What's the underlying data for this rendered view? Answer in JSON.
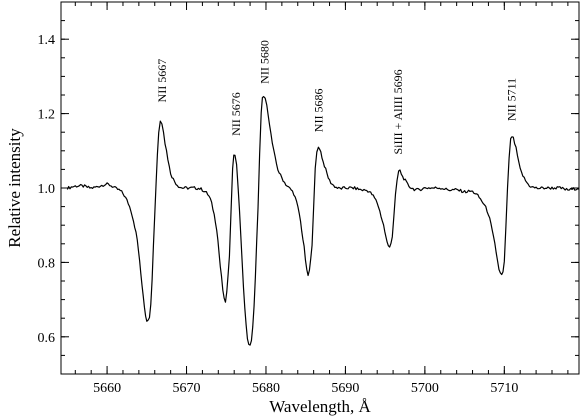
{
  "chart_data": {
    "type": "line",
    "xlabel": "Wavelength, Å",
    "ylabel": "Relative intensity",
    "xlim": [
      5654.2,
      5719.4
    ],
    "ylim": [
      0.5,
      1.5
    ],
    "x_major_ticks": [
      5660,
      5670,
      5680,
      5690,
      5700,
      5710
    ],
    "x_minor_step": 2,
    "y_major_ticks": [
      0.6,
      0.8,
      1.0,
      1.2,
      1.4
    ],
    "y_minor_step": 0.05,
    "x_tick_labels": [
      "5660",
      "5670",
      "5680",
      "5690",
      "5700",
      "5710"
    ],
    "y_tick_labels": [
      "0.6",
      "0.8",
      "1.0",
      "1.2",
      "1.4"
    ],
    "grid": false,
    "series": [
      {
        "color": "#000000",
        "points": [
          [
            5655.0,
            1.0
          ],
          [
            5656.0,
            1.005
          ],
          [
            5657.0,
            1.005
          ],
          [
            5658.0,
            1.0
          ],
          [
            5659.0,
            1.005
          ],
          [
            5660.0,
            1.01
          ],
          [
            5661.0,
            1.0
          ],
          [
            5662.0,
            0.985
          ],
          [
            5663.0,
            0.94
          ],
          [
            5663.8,
            0.86
          ],
          [
            5664.4,
            0.74
          ],
          [
            5665.0,
            0.645
          ],
          [
            5665.5,
            0.69
          ],
          [
            5666.0,
            0.93
          ],
          [
            5666.5,
            1.15
          ],
          [
            5666.9,
            1.175
          ],
          [
            5667.3,
            1.12
          ],
          [
            5668.0,
            1.04
          ],
          [
            5669.0,
            1.005
          ],
          [
            5670.0,
            1.0
          ],
          [
            5671.0,
            1.0
          ],
          [
            5672.0,
            0.995
          ],
          [
            5673.0,
            0.97
          ],
          [
            5673.8,
            0.89
          ],
          [
            5674.4,
            0.76
          ],
          [
            5674.9,
            0.695
          ],
          [
            5675.4,
            0.82
          ],
          [
            5675.8,
            1.05
          ],
          [
            5676.1,
            1.09
          ],
          [
            5676.5,
            1.0
          ],
          [
            5677.0,
            0.8
          ],
          [
            5677.5,
            0.63
          ],
          [
            5678.0,
            0.575
          ],
          [
            5678.5,
            0.68
          ],
          [
            5679.0,
            0.95
          ],
          [
            5679.4,
            1.2
          ],
          [
            5679.7,
            1.245
          ],
          [
            5680.1,
            1.22
          ],
          [
            5680.8,
            1.12
          ],
          [
            5681.5,
            1.05
          ],
          [
            5682.5,
            1.01
          ],
          [
            5683.5,
            0.985
          ],
          [
            5684.2,
            0.93
          ],
          [
            5684.8,
            0.84
          ],
          [
            5685.3,
            0.765
          ],
          [
            5685.8,
            0.85
          ],
          [
            5686.2,
            1.05
          ],
          [
            5686.6,
            1.11
          ],
          [
            5687.2,
            1.07
          ],
          [
            5688.0,
            1.02
          ],
          [
            5689.0,
            1.0
          ],
          [
            5690.0,
            1.0
          ],
          [
            5691.0,
            1.0
          ],
          [
            5692.0,
            0.995
          ],
          [
            5693.0,
            0.99
          ],
          [
            5694.0,
            0.96
          ],
          [
            5694.8,
            0.9
          ],
          [
            5695.4,
            0.845
          ],
          [
            5695.9,
            0.87
          ],
          [
            5696.3,
            0.98
          ],
          [
            5696.7,
            1.045
          ],
          [
            5697.2,
            1.03
          ],
          [
            5698.0,
            1.005
          ],
          [
            5699.0,
            0.995
          ],
          [
            5700.0,
            1.0
          ],
          [
            5701.0,
            1.0
          ],
          [
            5702.0,
            1.0
          ],
          [
            5703.0,
            0.995
          ],
          [
            5704.0,
            0.995
          ],
          [
            5705.0,
            0.99
          ],
          [
            5706.0,
            0.99
          ],
          [
            5707.0,
            0.97
          ],
          [
            5708.0,
            0.93
          ],
          [
            5708.8,
            0.85
          ],
          [
            5709.5,
            0.77
          ],
          [
            5710.0,
            0.8
          ],
          [
            5710.4,
            1.0
          ],
          [
            5710.8,
            1.13
          ],
          [
            5711.3,
            1.12
          ],
          [
            5712.0,
            1.05
          ],
          [
            5713.0,
            1.01
          ],
          [
            5714.0,
            1.0
          ],
          [
            5715.0,
            1.0
          ],
          [
            5716.0,
            1.0
          ],
          [
            5717.0,
            1.0
          ],
          [
            5718.0,
            0.995
          ],
          [
            5719.4,
            1.0
          ]
        ]
      }
    ],
    "annotations": [
      {
        "text": "NII 5667",
        "x": 5666.9,
        "y": 1.23
      },
      {
        "text": "NII 5676",
        "x": 5676.2,
        "y": 1.14
      },
      {
        "text": "NII 5680",
        "x": 5679.8,
        "y": 1.28
      },
      {
        "text": "NII 5686",
        "x": 5686.6,
        "y": 1.15
      },
      {
        "text": "SiIII + AlIII 5696",
        "x": 5696.6,
        "y": 1.09
      },
      {
        "text": "NII 5711",
        "x": 5710.9,
        "y": 1.18
      }
    ]
  }
}
